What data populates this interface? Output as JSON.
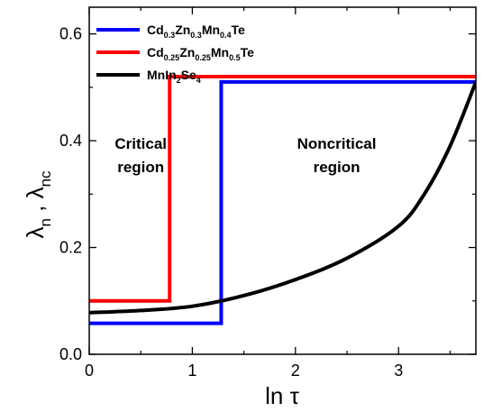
{
  "chart_data": {
    "type": "line",
    "xlabel": "ln τ",
    "ylabel": "λn , λnc",
    "xlim": [
      0,
      3.75
    ],
    "ylim": [
      0,
      0.65
    ],
    "x_ticks": [
      "0",
      "1",
      "2",
      "3"
    ],
    "y_ticks": [
      "0.0",
      "0.2",
      "0.4",
      "0.6"
    ],
    "grid": false,
    "legend_position": "top-left",
    "series": [
      {
        "name": "Cd0.3Zn0.3Mn0.4Te",
        "legend_parts": [
          [
            "Cd",
            ""
          ],
          [
            "0.3",
            "sub"
          ],
          [
            "Zn",
            ""
          ],
          [
            "0.3",
            "sub"
          ],
          [
            "Mn",
            ""
          ],
          [
            "0.4",
            "sub"
          ],
          [
            "Te",
            ""
          ]
        ],
        "color": "#0000ff",
        "x": [
          0,
          1.28,
          1.28,
          3.75
        ],
        "y": [
          0.058,
          0.058,
          0.51,
          0.51
        ]
      },
      {
        "name": "Cd0.25Zn0.25Mn0.5Te",
        "legend_parts": [
          [
            "Cd",
            ""
          ],
          [
            "0.25",
            "sub"
          ],
          [
            "Zn",
            ""
          ],
          [
            "0.25",
            "sub"
          ],
          [
            "Mn",
            ""
          ],
          [
            "0.5",
            "sub"
          ],
          [
            "Te",
            ""
          ]
        ],
        "color": "#ff0000",
        "x": [
          0,
          0.78,
          0.78,
          3.75
        ],
        "y": [
          0.1,
          0.1,
          0.52,
          0.52
        ]
      },
      {
        "name": "MnIn2Se4",
        "legend_parts": [
          [
            "MnIn",
            ""
          ],
          [
            "2",
            "sub"
          ],
          [
            "Se",
            ""
          ],
          [
            "4",
            "sub"
          ]
        ],
        "color": "#000000",
        "x": [
          0,
          0.5,
          1.0,
          1.5,
          2.0,
          2.5,
          3.0,
          3.25,
          3.5,
          3.75
        ],
        "y": [
          0.078,
          0.082,
          0.09,
          0.11,
          0.14,
          0.18,
          0.24,
          0.3,
          0.39,
          0.51
        ]
      }
    ],
    "annotations": [
      {
        "lines": [
          "Critical",
          "region"
        ],
        "x": 0.5,
        "y": 0.385
      },
      {
        "lines": [
          "Noncritical",
          "region"
        ],
        "x": 2.4,
        "y": 0.385
      }
    ]
  }
}
